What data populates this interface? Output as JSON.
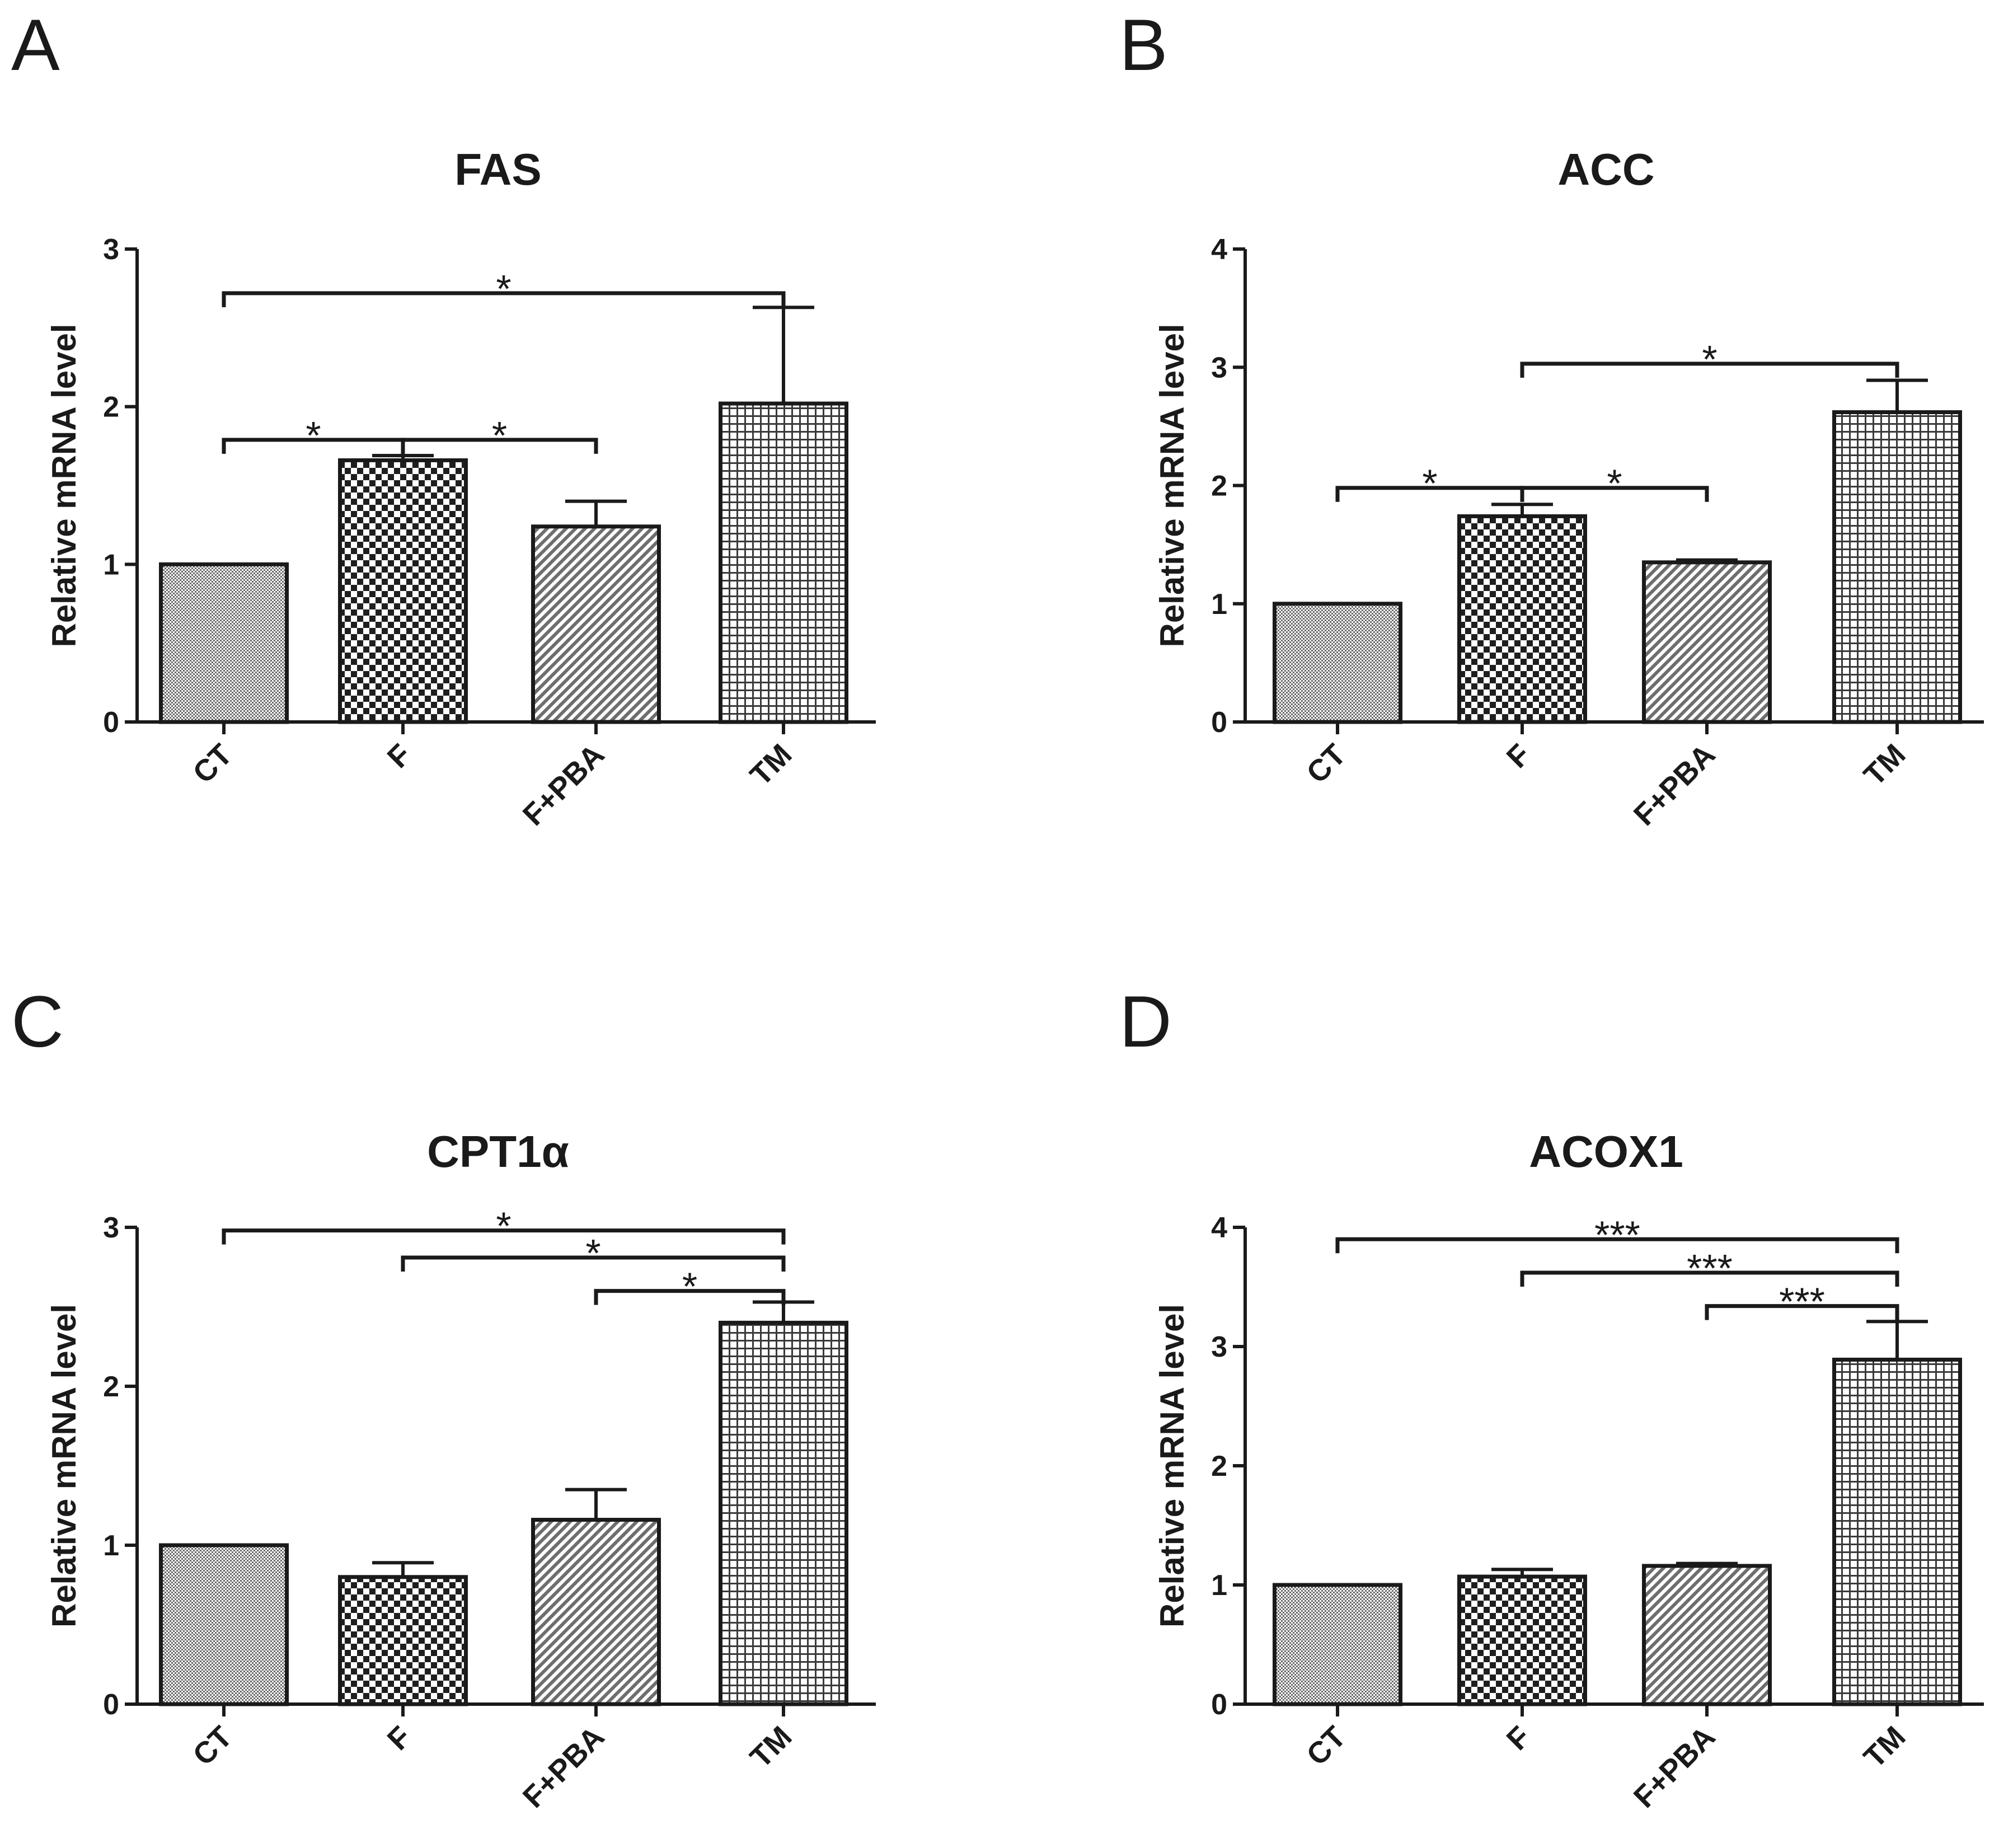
{
  "colors": {
    "ink": "#1a1a1a",
    "background": "#ffffff"
  },
  "chart_data": [
    {
      "panel": "A",
      "type": "bar",
      "title": "FAS",
      "ylabel": "Relative mRNA level",
      "xlabel": "",
      "categories": [
        "CT",
        "F",
        "F+PBA",
        "TM"
      ],
      "values": [
        1.0,
        1.66,
        1.24,
        2.02
      ],
      "errors": [
        0,
        0.03,
        0.16,
        0.61
      ],
      "patterns": [
        "fine",
        "checker",
        "diagonal",
        "grid"
      ],
      "ylim": [
        0,
        3
      ],
      "yticks": [
        "0",
        "1",
        "2",
        "3"
      ],
      "grid": false,
      "significance": [
        {
          "from": 0,
          "to": 3,
          "level": 2.72,
          "label": "*"
        },
        {
          "from": 0,
          "to": 1,
          "level": 1.79,
          "label": "*"
        },
        {
          "from": 1,
          "to": 2,
          "level": 1.79,
          "label": "*"
        }
      ]
    },
    {
      "panel": "B",
      "type": "bar",
      "title": "ACC",
      "ylabel": "Relative mRNA level",
      "xlabel": "",
      "categories": [
        "CT",
        "F",
        "F+PBA",
        "TM"
      ],
      "values": [
        1.0,
        1.74,
        1.35,
        2.62
      ],
      "errors": [
        0,
        0.1,
        0.02,
        0.27
      ],
      "patterns": [
        "fine",
        "checker",
        "diagonal",
        "grid"
      ],
      "ylim": [
        0,
        4
      ],
      "yticks": [
        "0",
        "1",
        "2",
        "3",
        "4"
      ],
      "grid": false,
      "significance": [
        {
          "from": 1,
          "to": 3,
          "level": 3.03,
          "label": "*"
        },
        {
          "from": 0,
          "to": 1,
          "level": 1.98,
          "label": "*"
        },
        {
          "from": 1,
          "to": 2,
          "level": 1.98,
          "label": "*"
        }
      ]
    },
    {
      "panel": "C",
      "type": "bar",
      "title": "CPT1α",
      "ylabel": "Relative mRNA level",
      "xlabel": "",
      "categories": [
        "CT",
        "F",
        "F+PBA",
        "TM"
      ],
      "values": [
        1.0,
        0.8,
        1.16,
        2.4
      ],
      "errors": [
        0,
        0.09,
        0.19,
        0.13
      ],
      "patterns": [
        "fine",
        "checker",
        "diagonal",
        "grid"
      ],
      "ylim": [
        0,
        3
      ],
      "yticks": [
        "0",
        "1",
        "2",
        "3"
      ],
      "grid": false,
      "significance": [
        {
          "from": 0,
          "to": 3,
          "level": 2.98,
          "label": "*"
        },
        {
          "from": 1,
          "to": 3,
          "level": 2.81,
          "label": "*"
        },
        {
          "from": 2,
          "to": 3,
          "level": 2.6,
          "label": "*"
        }
      ]
    },
    {
      "panel": "D",
      "type": "bar",
      "title": "ACOX1",
      "ylabel": "Relative mRNA level",
      "xlabel": "",
      "categories": [
        "CT",
        "F",
        "F+PBA",
        "TM"
      ],
      "values": [
        1.0,
        1.07,
        1.16,
        2.89
      ],
      "errors": [
        0,
        0.06,
        0.02,
        0.32
      ],
      "patterns": [
        "fine",
        "checker",
        "diagonal",
        "grid"
      ],
      "ylim": [
        0,
        4
      ],
      "yticks": [
        "0",
        "1",
        "2",
        "3",
        "4"
      ],
      "grid": false,
      "significance": [
        {
          "from": 0,
          "to": 3,
          "level": 3.9,
          "label": "***"
        },
        {
          "from": 1,
          "to": 3,
          "level": 3.62,
          "label": "***"
        },
        {
          "from": 2,
          "to": 3,
          "level": 3.34,
          "label": "***"
        }
      ]
    }
  ]
}
